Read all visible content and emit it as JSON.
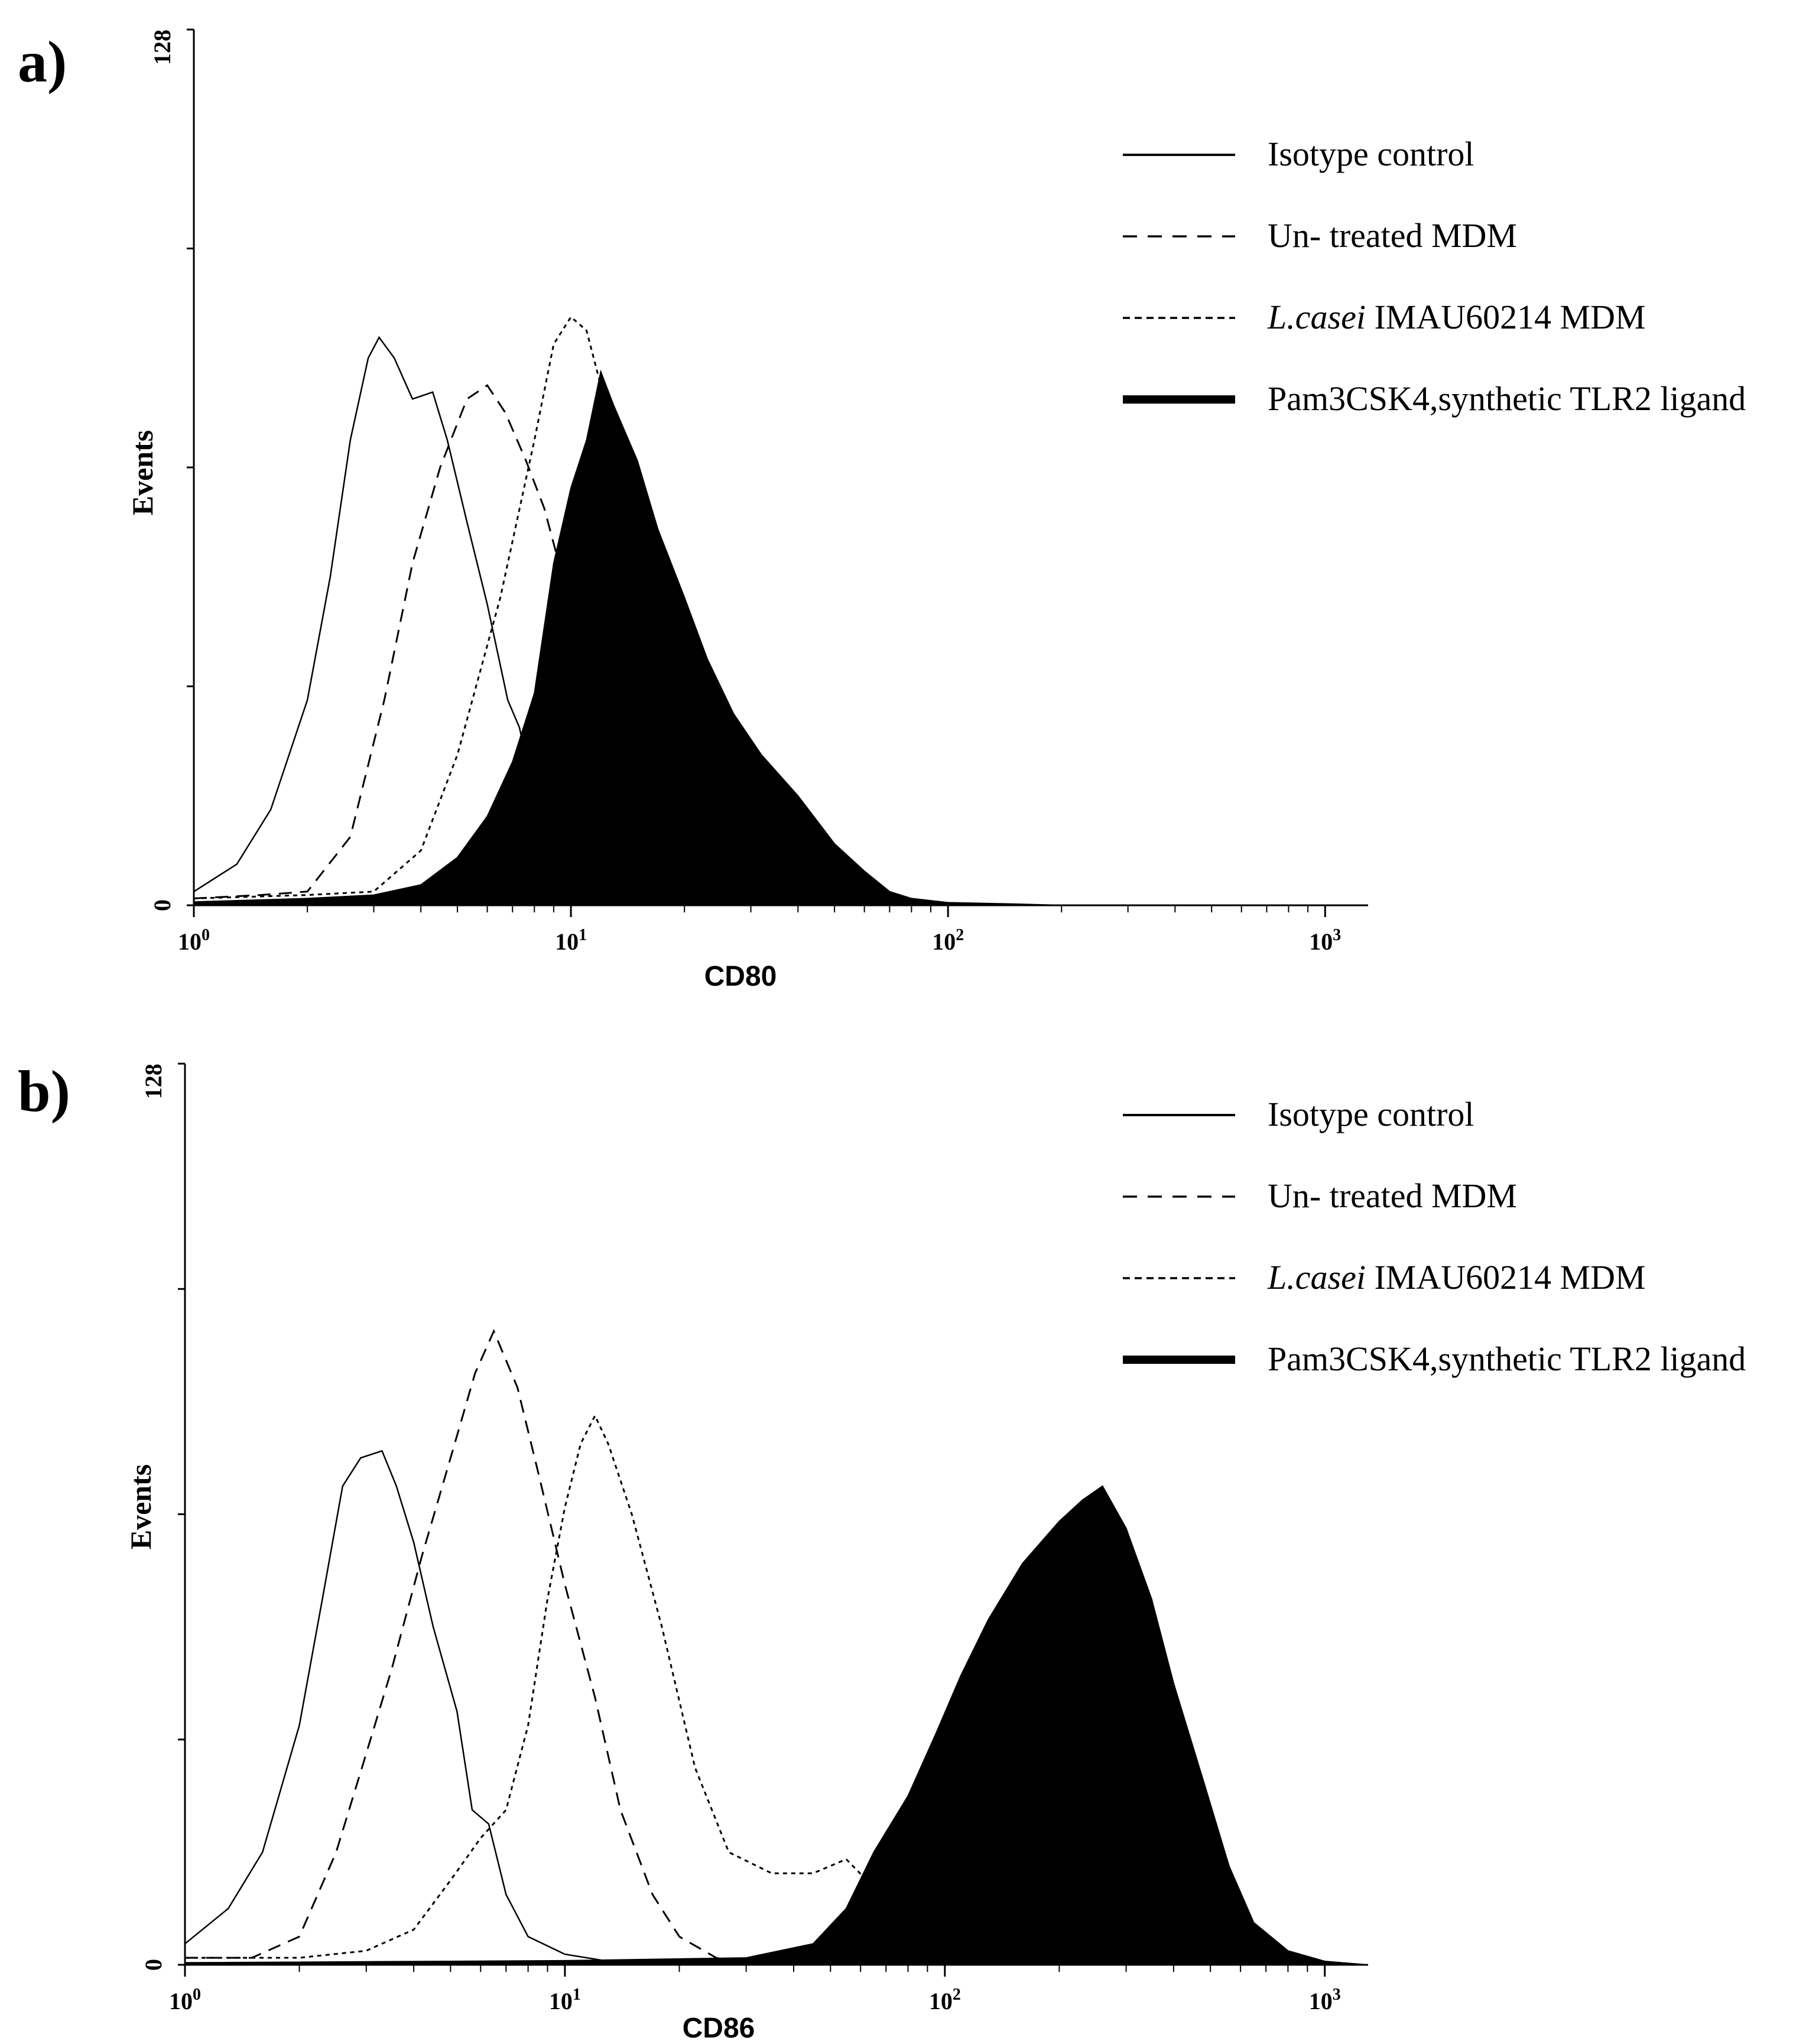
{
  "chart_data": [
    {
      "type": "histogram",
      "panel_label": "a)",
      "xlabel": "CD80",
      "ylabel": "Events",
      "xscale": "log",
      "xlim": [
        1,
        1300
      ],
      "xticks": [
        {
          "base": "10",
          "exp": "0",
          "value": 1
        },
        {
          "base": "10",
          "exp": "1",
          "value": 10
        },
        {
          "base": "10",
          "exp": "2",
          "value": 100
        },
        {
          "base": "10",
          "exp": "3",
          "value": 1000
        }
      ],
      "ylim": [
        0,
        128
      ],
      "yticks": [
        {
          "label": "128",
          "value": 128
        },
        {
          "label": "0",
          "value": 0
        }
      ],
      "legend_position": "top-right",
      "series": [
        {
          "key": "isotype",
          "style": "solid",
          "name_italic": "",
          "name": "Isotype control",
          "points": [
            [
              1,
              2
            ],
            [
              1.3,
              6
            ],
            [
              1.6,
              14
            ],
            [
              2.0,
              30
            ],
            [
              2.3,
              48
            ],
            [
              2.6,
              68
            ],
            [
              2.9,
              80
            ],
            [
              3.1,
              83
            ],
            [
              3.4,
              80
            ],
            [
              3.8,
              74
            ],
            [
              4.3,
              75
            ],
            [
              4.7,
              68
            ],
            [
              5.3,
              56
            ],
            [
              6.0,
              44
            ],
            [
              6.8,
              30
            ],
            [
              7.3,
              26
            ],
            [
              8.0,
              16
            ],
            [
              9.0,
              9
            ],
            [
              10,
              5
            ],
            [
              12,
              2
            ],
            [
              15,
              0.6
            ],
            [
              20,
              0
            ]
          ]
        },
        {
          "key": "untreated",
          "style": "dashed",
          "name_italic": "",
          "name": "Un- treated MDM",
          "points": [
            [
              1,
              1
            ],
            [
              1.5,
              1.5
            ],
            [
              2.0,
              2
            ],
            [
              2.6,
              10
            ],
            [
              3.2,
              30
            ],
            [
              3.8,
              50
            ],
            [
              4.5,
              64
            ],
            [
              5.3,
              74
            ],
            [
              6.0,
              76
            ],
            [
              6.7,
              72
            ],
            [
              7.6,
              65
            ],
            [
              8.5,
              58
            ],
            [
              9.5,
              48
            ],
            [
              11,
              38
            ],
            [
              13,
              25
            ],
            [
              16,
              14
            ],
            [
              20,
              6
            ],
            [
              25,
              2
            ],
            [
              30,
              0.5
            ],
            [
              40,
              0
            ]
          ]
        },
        {
          "key": "lcasei",
          "style": "dotted",
          "name_italic": "L.casei",
          "name": " IMAU60214 MDM",
          "points": [
            [
              1,
              1
            ],
            [
              2,
              1.5
            ],
            [
              3,
              2
            ],
            [
              4,
              8
            ],
            [
              5,
              22
            ],
            [
              6.5,
              45
            ],
            [
              8,
              68
            ],
            [
              9,
              82
            ],
            [
              10,
              86
            ],
            [
              11,
              84
            ],
            [
              12,
              76
            ],
            [
              14,
              64
            ],
            [
              16,
              54
            ],
            [
              19,
              38
            ],
            [
              24,
              24
            ],
            [
              30,
              15
            ],
            [
              40,
              6
            ],
            [
              55,
              2
            ],
            [
              70,
              0.5
            ],
            [
              90,
              0
            ]
          ]
        },
        {
          "key": "pam3",
          "style": "filled",
          "name_italic": "",
          "name": "Pam3CSK4,synthetic TLR2 ligand",
          "points": [
            [
              1,
              0.5
            ],
            [
              2,
              1
            ],
            [
              3,
              1.5
            ],
            [
              4,
              3
            ],
            [
              5,
              7
            ],
            [
              6,
              13
            ],
            [
              7,
              21
            ],
            [
              8,
              31
            ],
            [
              9,
              50
            ],
            [
              10,
              61
            ],
            [
              11,
              68
            ],
            [
              12,
              78
            ],
            [
              13,
              73
            ],
            [
              15,
              65
            ],
            [
              17,
              55
            ],
            [
              20,
              45
            ],
            [
              23,
              36
            ],
            [
              27,
              28
            ],
            [
              32,
              22
            ],
            [
              40,
              16
            ],
            [
              50,
              9
            ],
            [
              60,
              5
            ],
            [
              70,
              2
            ],
            [
              80,
              1
            ],
            [
              100,
              0.4
            ],
            [
              150,
              0.2
            ],
            [
              200,
              0
            ]
          ]
        }
      ]
    },
    {
      "type": "histogram",
      "panel_label": "b)",
      "xlabel": "CD86",
      "ylabel": "Events",
      "xscale": "log",
      "xlim": [
        1,
        1300
      ],
      "xticks": [
        {
          "base": "10",
          "exp": "0",
          "value": 1
        },
        {
          "base": "10",
          "exp": "1",
          "value": 10
        },
        {
          "base": "10",
          "exp": "2",
          "value": 100
        },
        {
          "base": "10",
          "exp": "3",
          "value": 1000
        }
      ],
      "ylim": [
        0,
        128
      ],
      "yticks": [
        {
          "label": "128",
          "value": 128
        },
        {
          "label": "0",
          "value": 0
        }
      ],
      "legend_position": "top-right",
      "series": [
        {
          "key": "isotype",
          "style": "solid",
          "name_italic": "",
          "name": "Isotype control",
          "points": [
            [
              1,
              3
            ],
            [
              1.3,
              8
            ],
            [
              1.6,
              16
            ],
            [
              2.0,
              34
            ],
            [
              2.3,
              52
            ],
            [
              2.6,
              68
            ],
            [
              2.9,
              72
            ],
            [
              3.3,
              73
            ],
            [
              3.6,
              68
            ],
            [
              4.0,
              60
            ],
            [
              4.5,
              48
            ],
            [
              5.2,
              36
            ],
            [
              5.7,
              22
            ],
            [
              6.3,
              20
            ],
            [
              7,
              10
            ],
            [
              8,
              4
            ],
            [
              10,
              1.5
            ],
            [
              13,
              0.5
            ],
            [
              20,
              0
            ]
          ]
        },
        {
          "key": "untreated",
          "style": "dashed",
          "name_italic": "",
          "name": "Un- treated MDM",
          "points": [
            [
              1,
              1
            ],
            [
              1.5,
              1
            ],
            [
              2,
              4
            ],
            [
              2.5,
              16
            ],
            [
              3,
              30
            ],
            [
              3.5,
              42
            ],
            [
              4.2,
              58
            ],
            [
              5,
              72
            ],
            [
              5.8,
              84
            ],
            [
              6.5,
              90
            ],
            [
              7.5,
              82
            ],
            [
              8.5,
              70
            ],
            [
              10,
              54
            ],
            [
              12,
              38
            ],
            [
              14,
              22
            ],
            [
              17,
              10
            ],
            [
              20,
              4
            ],
            [
              25,
              1
            ],
            [
              30,
              0
            ]
          ]
        },
        {
          "key": "lcasei",
          "style": "dotted",
          "name_italic": "L.casei",
          "name": " IMAU60214 MDM",
          "points": [
            [
              1,
              1
            ],
            [
              2,
              1
            ],
            [
              3,
              2
            ],
            [
              4,
              5
            ],
            [
              5,
              12
            ],
            [
              6,
              18
            ],
            [
              7,
              22
            ],
            [
              8,
              34
            ],
            [
              9,
              52
            ],
            [
              10,
              65
            ],
            [
              11,
              74
            ],
            [
              12,
              78
            ],
            [
              13,
              74
            ],
            [
              15,
              64
            ],
            [
              18,
              48
            ],
            [
              22,
              28
            ],
            [
              27,
              16
            ],
            [
              35,
              13
            ],
            [
              45,
              13
            ],
            [
              55,
              15
            ],
            [
              65,
              11
            ],
            [
              80,
              7
            ],
            [
              100,
              4
            ],
            [
              150,
              2
            ],
            [
              200,
              1
            ],
            [
              300,
              0
            ]
          ]
        },
        {
          "key": "pam3",
          "style": "filled",
          "name_italic": "",
          "name": "Pam3CSK4,synthetic TLR2 ligand",
          "points": [
            [
              1,
              0.3
            ],
            [
              10,
              0.6
            ],
            [
              30,
              1
            ],
            [
              45,
              3
            ],
            [
              55,
              8
            ],
            [
              65,
              16
            ],
            [
              80,
              24
            ],
            [
              95,
              33
            ],
            [
              110,
              41
            ],
            [
              130,
              49
            ],
            [
              160,
              57
            ],
            [
              200,
              63
            ],
            [
              230,
              66
            ],
            [
              260,
              68
            ],
            [
              300,
              62
            ],
            [
              350,
              52
            ],
            [
              400,
              40
            ],
            [
              480,
              26
            ],
            [
              560,
              14
            ],
            [
              650,
              6
            ],
            [
              800,
              2
            ],
            [
              1000,
              0.5
            ],
            [
              1300,
              0
            ]
          ]
        }
      ]
    }
  ]
}
